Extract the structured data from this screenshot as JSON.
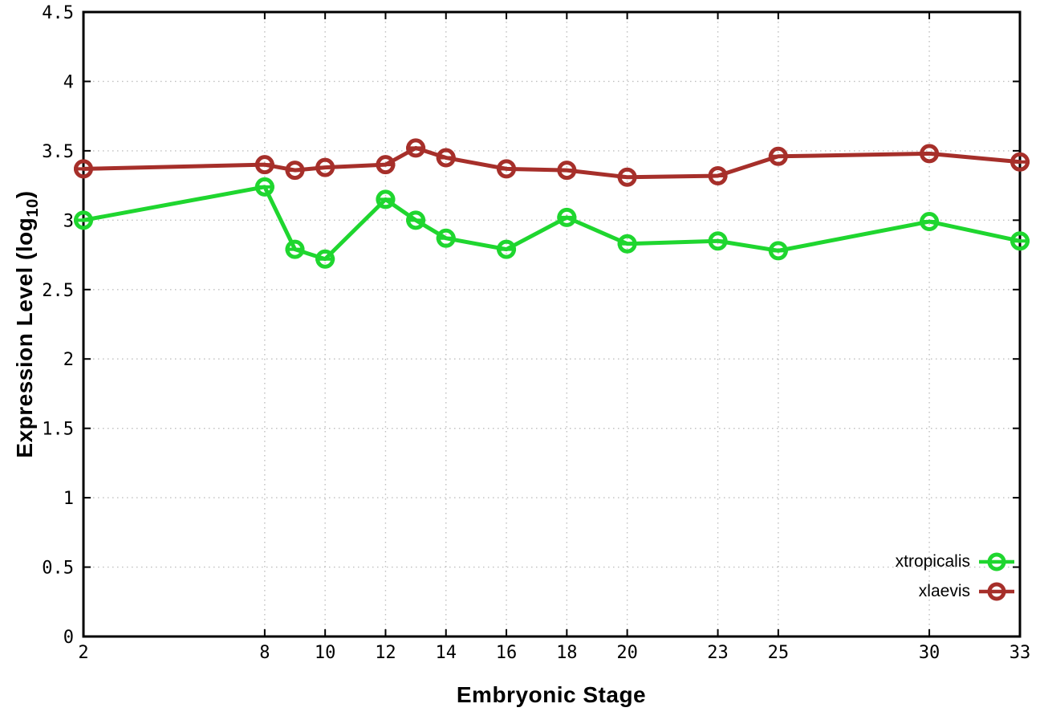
{
  "chart_data": {
    "type": "line",
    "title": "",
    "xlabel": "Embryonic Stage",
    "ylabel": {
      "prefix": "Expression Level (log",
      "sub": "10",
      "suffix": ")"
    },
    "xlim": [
      2,
      33
    ],
    "ylim": [
      0,
      4.5
    ],
    "grid": true,
    "grid_color": "#bfbfbf",
    "border_color": "#000000",
    "legend_position": "inside-bottom-right",
    "x": [
      2,
      8,
      9,
      10,
      12,
      13,
      14,
      16,
      18,
      20,
      23,
      25,
      30,
      33
    ],
    "xticks": [
      2,
      8,
      10,
      12,
      14,
      16,
      18,
      20,
      23,
      25,
      30,
      33
    ],
    "yticks": [
      0,
      0.5,
      1,
      1.5,
      2,
      2.5,
      3,
      3.5,
      4,
      4.5
    ],
    "series": [
      {
        "name": "xtropicalis",
        "color": "#1fd62f",
        "marker": "open-circle",
        "values": [
          3.0,
          3.24,
          2.79,
          2.72,
          3.15,
          3.0,
          2.87,
          2.79,
          3.02,
          2.83,
          2.85,
          2.78,
          2.99,
          2.85
        ]
      },
      {
        "name": "xlaevis",
        "color": "#a62f2a",
        "marker": "open-circle",
        "values": [
          3.37,
          3.4,
          3.36,
          3.38,
          3.4,
          3.52,
          3.45,
          3.37,
          3.36,
          3.31,
          3.32,
          3.46,
          3.48,
          3.42
        ]
      }
    ]
  }
}
